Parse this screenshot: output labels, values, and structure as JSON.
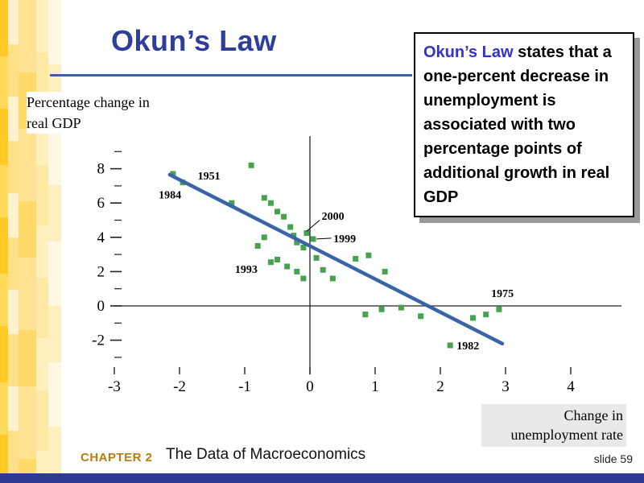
{
  "slide": {
    "title": "Okun’s Law",
    "footer": {
      "chapter": "CHAPTER 2",
      "course": "The Data of Macroeconomics",
      "slide_label": "slide",
      "slide_number": "59"
    }
  },
  "callout": {
    "term": "Okun’s Law",
    "rest": " states that a one-percent decrease in unemployment is associated with two percentage points of additional growth in real GDP"
  },
  "colors": {
    "title_blue": "#2d3f9a",
    "rule_blue": "#3f5fa7",
    "callout_term_blue": "#3333cc",
    "trend_line_blue": "#3a64a8",
    "data_point_green": "#46a24e",
    "chapter_gold": "#bd7a0c",
    "bottom_bar_blue": "#2d3a94",
    "sidebar_yellow": "#ffc926"
  },
  "chart_data": {
    "type": "scatter",
    "xlabel": "Change in unemployment rate",
    "ylabel": "Percentage change in real GDP",
    "xlim": [
      -3,
      4.78
    ],
    "ylim": [
      -4,
      9.9
    ],
    "x_ticks": [
      -3,
      -2,
      -1,
      0,
      1,
      2,
      3,
      4
    ],
    "y_ticks_major": [
      8,
      6,
      4,
      2,
      0,
      -2
    ],
    "y_ticks_minor": [
      9,
      7,
      5,
      3,
      1,
      -1,
      -3
    ],
    "grid": false,
    "point_color": "#46a24e",
    "trend_line": {
      "x1": -2.15,
      "y1": 7.65,
      "x2": 2.95,
      "y2": -2.2,
      "color": "#3a64a8"
    },
    "points": [
      [
        -2.1,
        7.7
      ],
      [
        -1.95,
        7.2
      ],
      [
        -0.9,
        8.2
      ],
      [
        -1.2,
        6.0
      ],
      [
        -0.7,
        6.3
      ],
      [
        -0.6,
        6.0
      ],
      [
        -0.5,
        5.5
      ],
      [
        -0.4,
        5.2
      ],
      [
        -0.7,
        4.0
      ],
      [
        -0.8,
        3.5
      ],
      [
        -0.3,
        4.6
      ],
      [
        -0.25,
        4.1
      ],
      [
        -0.2,
        3.7
      ],
      [
        -0.1,
        3.4
      ],
      [
        -0.05,
        4.25
      ],
      [
        0.05,
        3.9
      ],
      [
        -0.5,
        2.7
      ],
      [
        -0.6,
        2.55
      ],
      [
        -0.35,
        2.3
      ],
      [
        -0.2,
        2.0
      ],
      [
        -0.1,
        1.6
      ],
      [
        0.1,
        2.8
      ],
      [
        0.2,
        2.1
      ],
      [
        0.35,
        1.6
      ],
      [
        0.7,
        2.75
      ],
      [
        0.9,
        2.95
      ],
      [
        1.15,
        2.0
      ],
      [
        0.85,
        -0.5
      ],
      [
        1.1,
        -0.2
      ],
      [
        1.4,
        -0.1
      ],
      [
        1.7,
        -0.6
      ],
      [
        2.15,
        -2.3
      ],
      [
        2.5,
        -0.7
      ],
      [
        2.7,
        -0.5
      ],
      [
        2.9,
        -0.2
      ]
    ],
    "annotations": [
      {
        "text": "1951",
        "x": -1.72,
        "y": 7.6
      },
      {
        "text": "1984",
        "x": -2.32,
        "y": 6.5
      },
      {
        "text": "2000",
        "x": 0.18,
        "y": 5.25,
        "leader": {
          "x1": 0.15,
          "y1": 5.0,
          "x2": -0.05,
          "y2": 4.35
        }
      },
      {
        "text": "1999",
        "x": 0.36,
        "y": 3.95,
        "leader": {
          "x1": 0.33,
          "y1": 3.95,
          "x2": 0.1,
          "y2": 3.9
        }
      },
      {
        "text": "1993",
        "x": -1.15,
        "y": 2.15
      },
      {
        "text": "1975",
        "x": 2.78,
        "y": 0.75
      },
      {
        "text": "1982",
        "x": 2.25,
        "y": -2.3
      }
    ]
  }
}
